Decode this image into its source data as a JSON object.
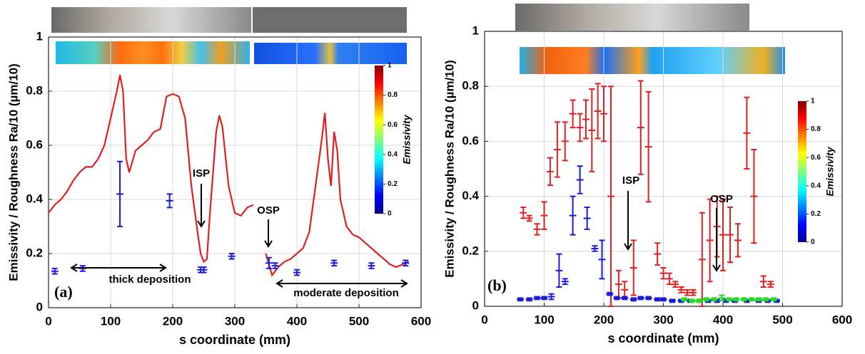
{
  "chart_data": [
    {
      "type": "line",
      "panel_label": "(a)",
      "x_label": "s coordinate (mm)",
      "y_label": "Emissivity / Roughness Ra/10 (µm/10)",
      "xlim": [
        0,
        600
      ],
      "xticks": [
        0,
        100,
        200,
        300,
        400,
        500,
        600
      ],
      "ylim": [
        0,
        1
      ],
      "yticks": [
        0,
        0.2,
        0.4,
        0.6,
        0.8,
        1
      ],
      "grid": true,
      "annotations": [
        "thick deposition",
        "ISP",
        "OSP",
        "moderate deposition"
      ],
      "colorbar": {
        "label": "Emissivity",
        "ticks": [
          0,
          0.2,
          0.4,
          0.6,
          0.8,
          1
        ]
      },
      "series": [
        {
          "type": "line",
          "color": "#e02020",
          "x": [
            0,
            10,
            20,
            30,
            40,
            50,
            60,
            70,
            80,
            90,
            100,
            110,
            115,
            120,
            125,
            130,
            140,
            150,
            160,
            170,
            180,
            190,
            200,
            210,
            220,
            230,
            240,
            245,
            250,
            255,
            260,
            270,
            275,
            280,
            290,
            300,
            310,
            320,
            330,
            340,
            350,
            360,
            370,
            380,
            390,
            400,
            410,
            420,
            430,
            440,
            445,
            450,
            455,
            460,
            465,
            470,
            480,
            490,
            500,
            510,
            520,
            530,
            540,
            550,
            560,
            570,
            580
          ],
          "values": [
            0.35,
            0.38,
            0.4,
            0.43,
            0.47,
            0.5,
            0.52,
            0.52,
            0.55,
            0.6,
            0.7,
            0.8,
            0.86,
            0.8,
            0.55,
            0.5,
            0.58,
            0.6,
            0.62,
            0.65,
            0.66,
            0.78,
            0.79,
            0.78,
            0.7,
            0.45,
            0.28,
            0.2,
            0.17,
            0.18,
            0.35,
            0.65,
            0.71,
            0.67,
            0.45,
            0.35,
            0.34,
            0.37,
            0.38,
            null,
            0.2,
            0.12,
            0.15,
            0.17,
            0.18,
            0.2,
            0.22,
            0.28,
            0.45,
            0.62,
            0.72,
            0.55,
            0.45,
            0.65,
            0.58,
            0.4,
            0.3,
            0.27,
            0.26,
            0.24,
            0.22,
            0.2,
            0.18,
            0.16,
            0.15,
            0.16,
            0.17
          ]
        },
        {
          "type": "errorbar",
          "color": "#1a1adf",
          "x": [
            10,
            55,
            115,
            195,
            245,
            250,
            295,
            355,
            365,
            400,
            460,
            520,
            575
          ],
          "values": [
            0.135,
            0.145,
            0.42,
            0.395,
            0.14,
            0.14,
            0.19,
            0.165,
            0.155,
            0.13,
            0.165,
            0.155,
            0.165
          ],
          "errors": [
            0.01,
            0.01,
            0.12,
            0.025,
            0.01,
            0.01,
            0.01,
            0.02,
            0.01,
            0.01,
            0.01,
            0.01,
            0.01
          ]
        }
      ]
    },
    {
      "type": "scatter",
      "panel_label": "(b)",
      "x_label": "s coordinate (mm)",
      "y_label": "Emissivity / Roughness Ra/10 (µm/10)",
      "xlim": [
        0,
        600
      ],
      "xticks": [
        0,
        100,
        200,
        300,
        400,
        500,
        600
      ],
      "ylim": [
        0,
        1
      ],
      "yticks": [
        0,
        0.2,
        0.4,
        0.6,
        0.8,
        1
      ],
      "grid": true,
      "annotations": [
        "ISP",
        "OSP"
      ],
      "colorbar": {
        "label": "Emissivity",
        "ticks": [
          0,
          0.2,
          0.4,
          0.6,
          0.8,
          1
        ]
      },
      "series": [
        {
          "type": "errorbar",
          "color": "#e02020",
          "x": [
            65,
            75,
            88,
            100,
            110,
            122,
            135,
            148,
            160,
            170,
            180,
            190,
            200,
            212,
            225,
            235,
            250,
            262,
            275,
            290,
            300,
            310,
            320,
            330,
            340,
            350,
            365,
            378,
            390,
            400,
            412,
            425,
            440,
            452,
            468,
            480
          ],
          "values": [
            0.34,
            0.32,
            0.28,
            0.33,
            0.49,
            0.57,
            0.6,
            0.7,
            0.65,
            0.68,
            0.64,
            0.71,
            0.7,
            0.4,
            0.08,
            0.06,
            0.14,
            0.65,
            0.58,
            0.19,
            0.12,
            0.1,
            0.08,
            0.06,
            0.05,
            0.05,
            0.17,
            0.24,
            0.29,
            0.26,
            0.26,
            0.24,
            0.63,
            0.4,
            0.09,
            0.08
          ],
          "errors": [
            0.02,
            0.01,
            0.02,
            0.05,
            0.05,
            0.1,
            0.07,
            0.05,
            0.05,
            0.07,
            0.15,
            0.1,
            0.1,
            0.4,
            0.05,
            0.03,
            0.1,
            0.17,
            0.2,
            0.04,
            0.02,
            0.02,
            0.01,
            0.01,
            0.01,
            0.01,
            0.17,
            0.15,
            0.11,
            0.13,
            0.1,
            0.06,
            0.13,
            0.17,
            0.02,
            0.01
          ]
        },
        {
          "type": "errorbar",
          "color": "#1a1adf",
          "x": [
            60,
            75,
            88,
            100,
            112,
            125,
            135,
            148,
            160,
            172,
            185,
            197,
            210,
            222,
            235,
            250,
            262,
            275,
            290,
            300,
            315,
            330,
            345,
            360,
            375,
            390,
            405,
            420,
            440,
            460,
            475,
            490
          ],
          "values": [
            0.025,
            0.025,
            0.03,
            0.03,
            0.035,
            0.13,
            0.09,
            0.33,
            0.46,
            0.32,
            0.21,
            0.17,
            0.045,
            0.03,
            0.03,
            0.025,
            0.03,
            0.03,
            0.025,
            0.025,
            0.02,
            0.02,
            0.02,
            0.02,
            0.02,
            0.02,
            0.02,
            0.02,
            0.02,
            0.02,
            0.02,
            0.02
          ],
          "errors": [
            0.005,
            0.005,
            0.005,
            0.005,
            0.01,
            0.06,
            0.01,
            0.07,
            0.05,
            0.04,
            0.01,
            0.07,
            0.005,
            0.005,
            0.005,
            0.005,
            0.005,
            0.005,
            0.005,
            0.005,
            0.005,
            0.005,
            0.005,
            0.005,
            0.005,
            0.005,
            0.005,
            0.005,
            0.005,
            0.005,
            0.005,
            0.005
          ]
        },
        {
          "type": "errorbar",
          "color": "#22dd22",
          "x": [
            335,
            348,
            360,
            372,
            385,
            398,
            410,
            422,
            435,
            448,
            460,
            472,
            485
          ],
          "values": [
            0.025,
            0.02,
            0.02,
            0.025,
            0.025,
            0.03,
            0.025,
            0.025,
            0.025,
            0.025,
            0.025,
            0.025,
            0.025
          ],
          "errors": [
            0.005,
            0.005,
            0.005,
            0.005,
            0.005,
            0.01,
            0.005,
            0.005,
            0.005,
            0.005,
            0.005,
            0.005,
            0.005
          ]
        }
      ]
    }
  ]
}
